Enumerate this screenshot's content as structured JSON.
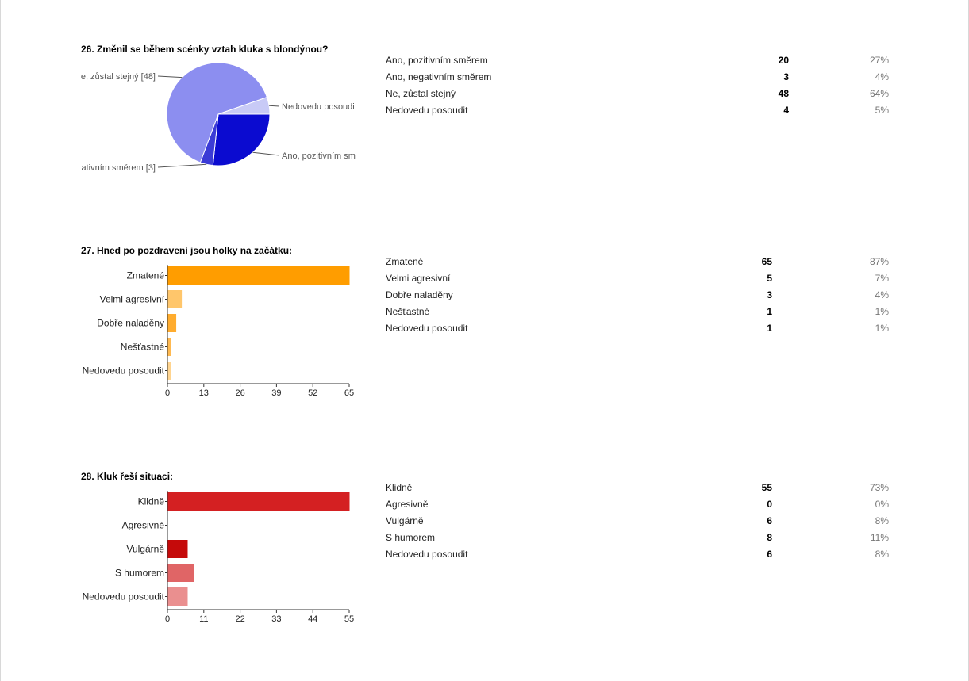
{
  "q26": {
    "title": "26. Změnil se během scénky vztah kluka s blondýnou?",
    "chart_data": {
      "type": "pie",
      "categories": [
        "Ano, pozitivním směrem",
        "Ano, negativním směrem",
        "Ne, zůstal stejný",
        "Nedovedu posoudit"
      ],
      "values": [
        20,
        3,
        48,
        4
      ],
      "colors": [
        "#0b0bd0",
        "#3b3bd6",
        "#8c8ef0",
        "#c8caf6"
      ],
      "slice_labels": [
        "Ano, pozitivním sm",
        "ativním směrem [3]",
        "e, zůstal stejný [48]",
        "Nedovedu posoudi"
      ]
    },
    "rows": [
      {
        "label": "Ano, pozitivním směrem",
        "count": "20",
        "pct": "27%"
      },
      {
        "label": "Ano, negativním směrem",
        "count": "3",
        "pct": "4%"
      },
      {
        "label": "Ne, zůstal stejný",
        "count": "48",
        "pct": "64%"
      },
      {
        "label": "Nedovedu posoudit",
        "count": "4",
        "pct": "5%"
      }
    ]
  },
  "q27": {
    "title": "27. Hned po pozdravení jsou holky na začátku:",
    "chart_data": {
      "type": "bar",
      "categories": [
        "Zmatené",
        "Velmi agresivní",
        "Dobře naladěny",
        "Nešťastné",
        "Nedovedu posoudit"
      ],
      "values": [
        65,
        5,
        3,
        1,
        1
      ],
      "colors": [
        "#ff9d00",
        "#ffc66b",
        "#ffac2e",
        "#ffb950",
        "#ffd48f"
      ],
      "xlim": [
        0,
        65
      ],
      "xticks": [
        "0",
        "13",
        "26",
        "39",
        "52",
        "65"
      ]
    },
    "rows": [
      {
        "label": "Zmatené",
        "count": "65",
        "pct": "87%"
      },
      {
        "label": "Velmi agresivní",
        "count": "5",
        "pct": "7%"
      },
      {
        "label": "Dobře naladěny",
        "count": "3",
        "pct": "4%"
      },
      {
        "label": "Nešťastné",
        "count": "1",
        "pct": "1%"
      },
      {
        "label": "Nedovedu posoudit",
        "count": "1",
        "pct": "1%"
      }
    ]
  },
  "q28": {
    "title": "28. Kluk řeší situaci:",
    "chart_data": {
      "type": "bar",
      "categories": [
        "Klidně",
        "Agresivně",
        "Vulgárně",
        "S humorem",
        "Nedovedu posoudit"
      ],
      "values": [
        55,
        0,
        6,
        8,
        6
      ],
      "colors": [
        "#d42022",
        "#e0393b",
        "#c50a0a",
        "#e06566",
        "#ea8f8f"
      ],
      "xlim": [
        0,
        55
      ],
      "xticks": [
        "0",
        "11",
        "22",
        "33",
        "44",
        "55"
      ]
    },
    "rows": [
      {
        "label": "Klidně",
        "count": "55",
        "pct": "73%"
      },
      {
        "label": "Agresivně",
        "count": "0",
        "pct": "0%"
      },
      {
        "label": "Vulgárně",
        "count": "6",
        "pct": "8%"
      },
      {
        "label": "S humorem",
        "count": "8",
        "pct": "11%"
      },
      {
        "label": "Nedovedu posoudit",
        "count": "6",
        "pct": "8%"
      }
    ]
  }
}
